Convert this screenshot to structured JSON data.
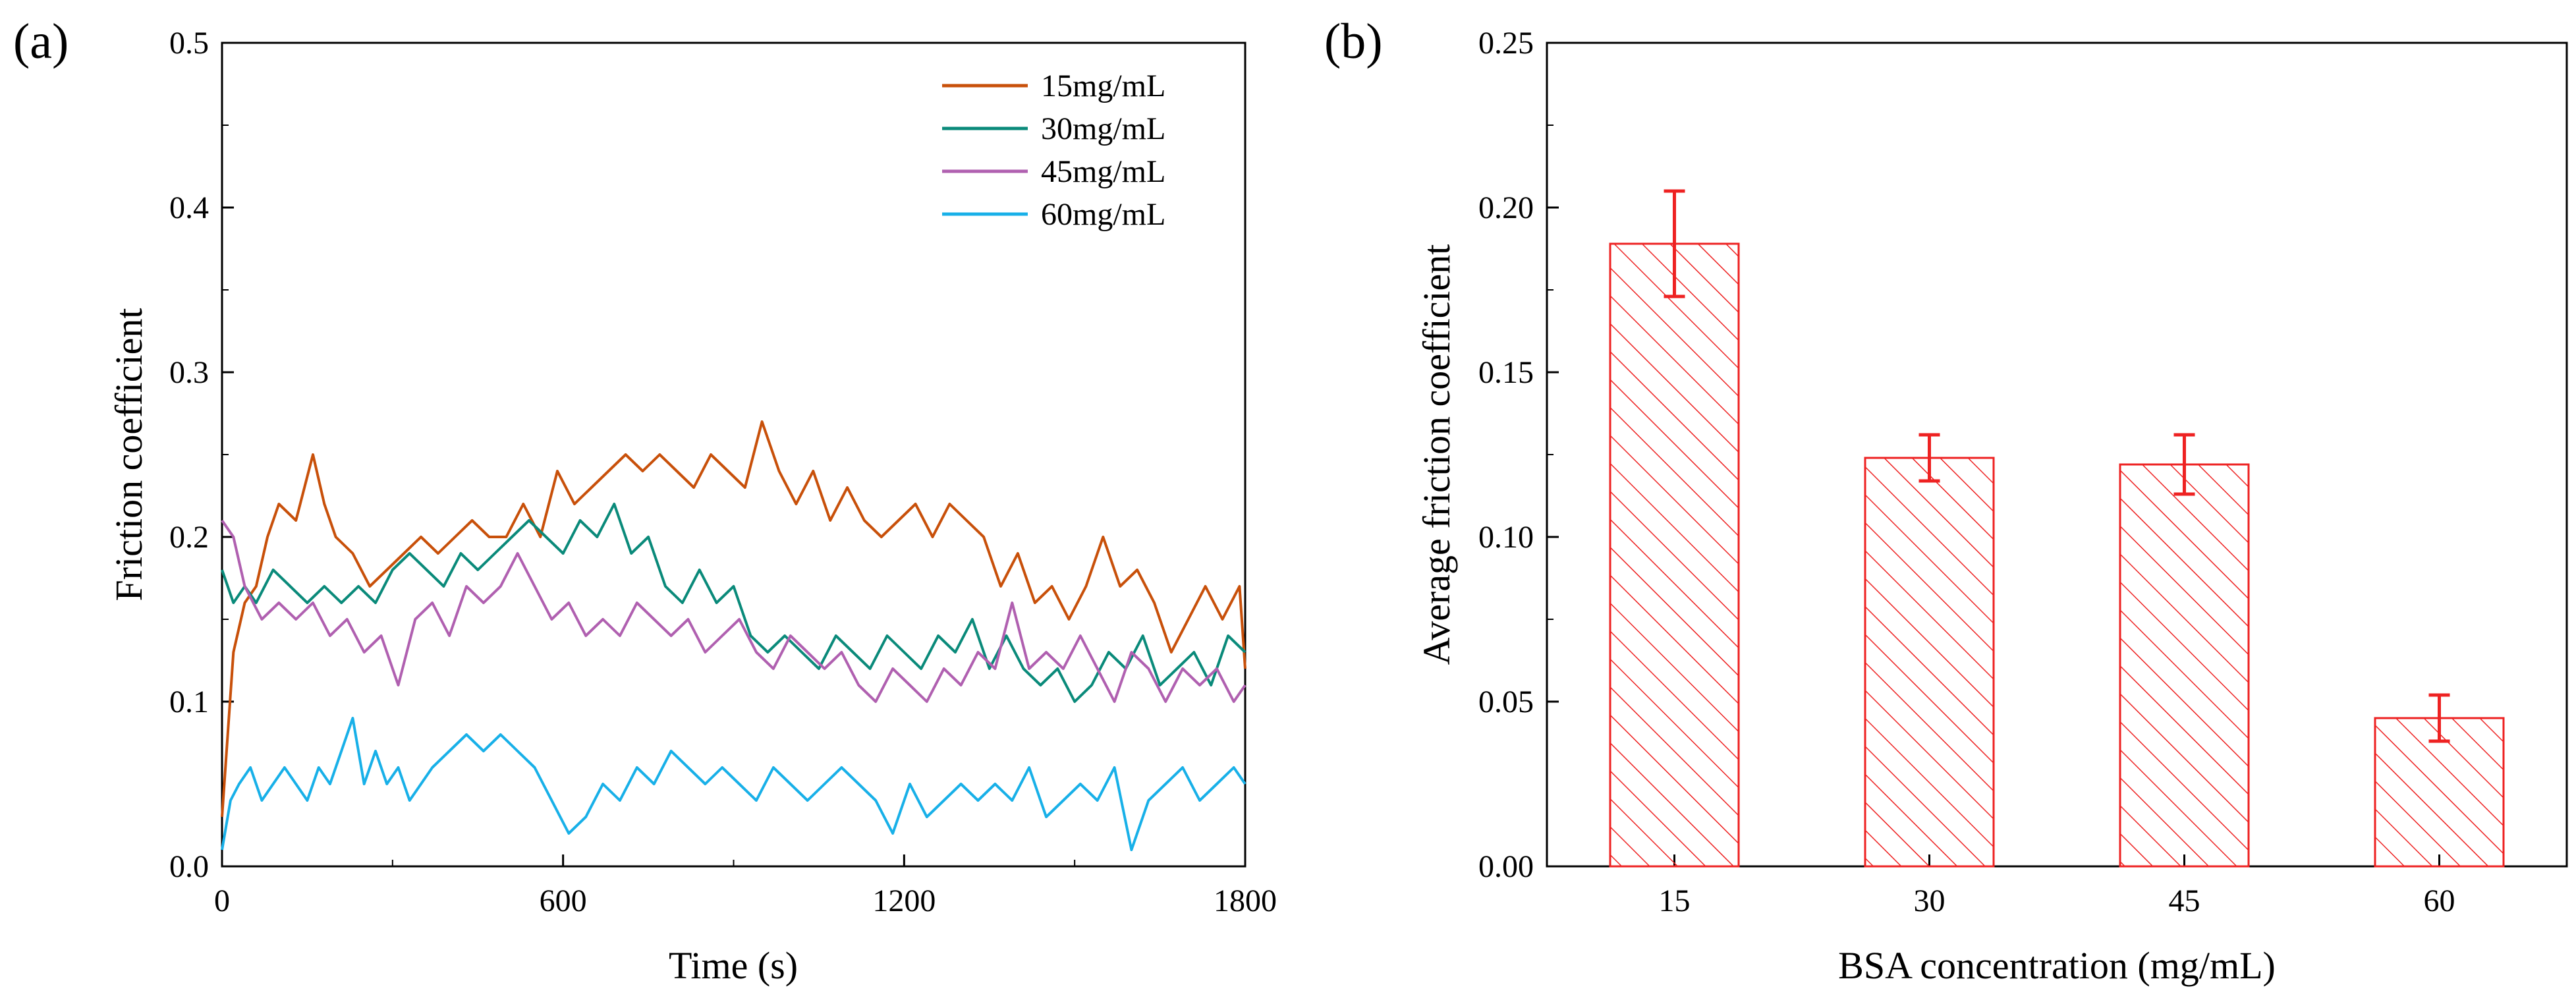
{
  "panels": {
    "a": {
      "label": "(a)"
    },
    "b": {
      "label": "(b)"
    }
  },
  "chart_data": [
    {
      "type": "line",
      "xlabel": "Time (s)",
      "ylabel": "Friction coefficient",
      "xlim": [
        0,
        1800
      ],
      "ylim": [
        0,
        0.5
      ],
      "xticks": [
        0,
        600,
        1200,
        1800
      ],
      "yticks": [
        0.0,
        0.1,
        0.2,
        0.3,
        0.4,
        0.5
      ],
      "ytick_labels": [
        "0.0",
        "0.1",
        "0.2",
        "0.3",
        "0.4",
        "0.5"
      ],
      "legend_position": "top-right",
      "grid": false,
      "series": [
        {
          "name": "15mg/mL",
          "color": "#c8500a",
          "x": [
            0,
            20,
            40,
            60,
            80,
            100,
            130,
            160,
            180,
            200,
            230,
            260,
            290,
            320,
            350,
            380,
            410,
            440,
            470,
            500,
            530,
            560,
            590,
            620,
            650,
            680,
            710,
            740,
            770,
            800,
            830,
            860,
            890,
            920,
            950,
            980,
            1010,
            1040,
            1070,
            1100,
            1130,
            1160,
            1190,
            1220,
            1250,
            1280,
            1310,
            1340,
            1370,
            1400,
            1430,
            1460,
            1490,
            1520,
            1550,
            1580,
            1610,
            1640,
            1670,
            1700,
            1730,
            1760,
            1790,
            1800
          ],
          "y": [
            0.03,
            0.13,
            0.16,
            0.17,
            0.2,
            0.22,
            0.21,
            0.25,
            0.22,
            0.2,
            0.19,
            0.17,
            0.18,
            0.19,
            0.2,
            0.19,
            0.2,
            0.21,
            0.2,
            0.2,
            0.22,
            0.2,
            0.24,
            0.22,
            0.23,
            0.24,
            0.25,
            0.24,
            0.25,
            0.24,
            0.23,
            0.25,
            0.24,
            0.23,
            0.27,
            0.24,
            0.22,
            0.24,
            0.21,
            0.23,
            0.21,
            0.2,
            0.21,
            0.22,
            0.2,
            0.22,
            0.21,
            0.2,
            0.17,
            0.19,
            0.16,
            0.17,
            0.15,
            0.17,
            0.2,
            0.17,
            0.18,
            0.16,
            0.13,
            0.15,
            0.17,
            0.15,
            0.17,
            0.12
          ]
        },
        {
          "name": "30mg/mL",
          "color": "#0a8a7a",
          "x": [
            0,
            20,
            40,
            60,
            90,
            120,
            150,
            180,
            210,
            240,
            270,
            300,
            330,
            360,
            390,
            420,
            450,
            480,
            510,
            540,
            570,
            600,
            630,
            660,
            690,
            720,
            750,
            780,
            810,
            840,
            870,
            900,
            930,
            960,
            990,
            1020,
            1050,
            1080,
            1110,
            1140,
            1170,
            1200,
            1230,
            1260,
            1290,
            1320,
            1350,
            1380,
            1410,
            1440,
            1470,
            1500,
            1530,
            1560,
            1590,
            1620,
            1650,
            1680,
            1710,
            1740,
            1770,
            1800
          ],
          "y": [
            0.18,
            0.16,
            0.17,
            0.16,
            0.18,
            0.17,
            0.16,
            0.17,
            0.16,
            0.17,
            0.16,
            0.18,
            0.19,
            0.18,
            0.17,
            0.19,
            0.18,
            0.19,
            0.2,
            0.21,
            0.2,
            0.19,
            0.21,
            0.2,
            0.22,
            0.19,
            0.2,
            0.17,
            0.16,
            0.18,
            0.16,
            0.17,
            0.14,
            0.13,
            0.14,
            0.13,
            0.12,
            0.14,
            0.13,
            0.12,
            0.14,
            0.13,
            0.12,
            0.14,
            0.13,
            0.15,
            0.12,
            0.14,
            0.12,
            0.11,
            0.12,
            0.1,
            0.11,
            0.13,
            0.12,
            0.14,
            0.11,
            0.12,
            0.13,
            0.11,
            0.14,
            0.13
          ]
        },
        {
          "name": "45mg/mL",
          "color": "#b060b0",
          "x": [
            0,
            20,
            40,
            70,
            100,
            130,
            160,
            190,
            220,
            250,
            280,
            310,
            340,
            370,
            400,
            430,
            460,
            490,
            520,
            550,
            580,
            610,
            640,
            670,
            700,
            730,
            760,
            790,
            820,
            850,
            880,
            910,
            940,
            970,
            1000,
            1030,
            1060,
            1090,
            1120,
            1150,
            1180,
            1210,
            1240,
            1270,
            1300,
            1330,
            1360,
            1390,
            1420,
            1450,
            1480,
            1510,
            1540,
            1570,
            1600,
            1630,
            1660,
            1690,
            1720,
            1750,
            1780,
            1800
          ],
          "y": [
            0.21,
            0.2,
            0.17,
            0.15,
            0.16,
            0.15,
            0.16,
            0.14,
            0.15,
            0.13,
            0.14,
            0.11,
            0.15,
            0.16,
            0.14,
            0.17,
            0.16,
            0.17,
            0.19,
            0.17,
            0.15,
            0.16,
            0.14,
            0.15,
            0.14,
            0.16,
            0.15,
            0.14,
            0.15,
            0.13,
            0.14,
            0.15,
            0.13,
            0.12,
            0.14,
            0.13,
            0.12,
            0.13,
            0.11,
            0.1,
            0.12,
            0.11,
            0.1,
            0.12,
            0.11,
            0.13,
            0.12,
            0.16,
            0.12,
            0.13,
            0.12,
            0.14,
            0.12,
            0.1,
            0.13,
            0.12,
            0.1,
            0.12,
            0.11,
            0.12,
            0.1,
            0.11
          ]
        },
        {
          "name": "60mg/mL",
          "color": "#18b0e8",
          "x": [
            0,
            15,
            30,
            50,
            70,
            90,
            110,
            130,
            150,
            170,
            190,
            210,
            230,
            250,
            270,
            290,
            310,
            330,
            350,
            370,
            400,
            430,
            460,
            490,
            520,
            550,
            580,
            610,
            640,
            670,
            700,
            730,
            760,
            790,
            820,
            850,
            880,
            910,
            940,
            970,
            1000,
            1030,
            1060,
            1090,
            1120,
            1150,
            1180,
            1210,
            1240,
            1270,
            1300,
            1330,
            1360,
            1390,
            1420,
            1450,
            1480,
            1510,
            1540,
            1570,
            1600,
            1630,
            1660,
            1690,
            1720,
            1750,
            1780,
            1800
          ],
          "y": [
            0.01,
            0.04,
            0.05,
            0.06,
            0.04,
            0.05,
            0.06,
            0.05,
            0.04,
            0.06,
            0.05,
            0.07,
            0.09,
            0.05,
            0.07,
            0.05,
            0.06,
            0.04,
            0.05,
            0.06,
            0.07,
            0.08,
            0.07,
            0.08,
            0.07,
            0.06,
            0.04,
            0.02,
            0.03,
            0.05,
            0.04,
            0.06,
            0.05,
            0.07,
            0.06,
            0.05,
            0.06,
            0.05,
            0.04,
            0.06,
            0.05,
            0.04,
            0.05,
            0.06,
            0.05,
            0.04,
            0.02,
            0.05,
            0.03,
            0.04,
            0.05,
            0.04,
            0.05,
            0.04,
            0.06,
            0.03,
            0.04,
            0.05,
            0.04,
            0.06,
            0.01,
            0.04,
            0.05,
            0.06,
            0.04,
            0.05,
            0.06,
            0.05
          ]
        }
      ]
    },
    {
      "type": "bar",
      "xlabel": "BSA concentration (mg/mL)",
      "ylabel": "Average friction coefficient",
      "categories": [
        "15",
        "30",
        "45",
        "60"
      ],
      "values": [
        0.189,
        0.124,
        0.122,
        0.045
      ],
      "errors": [
        0.016,
        0.007,
        0.009,
        0.007
      ],
      "ylim": [
        0,
        0.25
      ],
      "yticks": [
        0.0,
        0.05,
        0.1,
        0.15,
        0.2,
        0.25
      ],
      "ytick_labels": [
        "0.00",
        "0.05",
        "0.10",
        "0.15",
        "0.20",
        "0.25"
      ],
      "bar_color": "#ee2222",
      "bar_pattern": "diagonal hatch",
      "grid": false
    }
  ]
}
